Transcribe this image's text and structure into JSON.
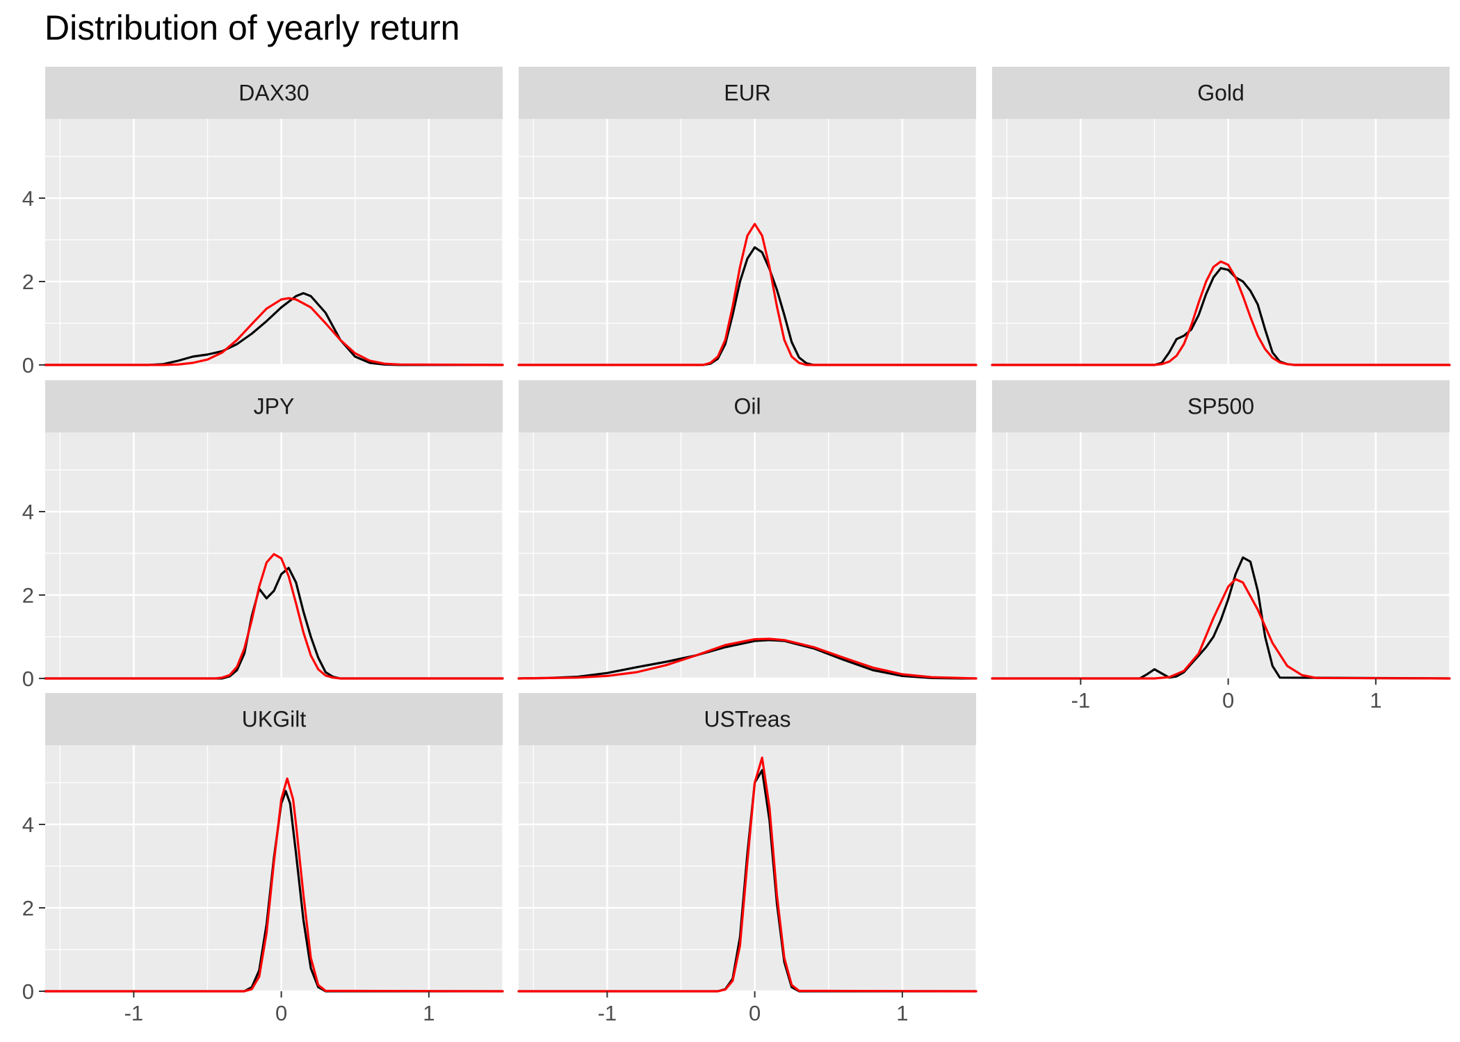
{
  "chart_data": {
    "type": "line",
    "title": "Distribution of yearly return",
    "xlabel": "",
    "ylabel": "",
    "xlim": [
      -1.6,
      1.5
    ],
    "ylim": [
      0,
      5.9
    ],
    "x_ticks": [
      -1,
      0,
      1
    ],
    "x_tick_labels": [
      "-1",
      "0",
      "1"
    ],
    "y_ticks": [
      0,
      2,
      4
    ],
    "y_tick_labels": [
      "0",
      "2",
      "4"
    ],
    "grid": true,
    "legend": "none",
    "colors": {
      "empirical": "#000000",
      "normal": "#ff0000",
      "panel_bg": "#ebebeb",
      "strip_bg": "#d9d9d9",
      "grid": "#ffffff"
    },
    "panels": [
      {
        "name": "DAX30",
        "series": [
          {
            "color": "#000000",
            "x": [
              -1.6,
              -0.9,
              -0.8,
              -0.7,
              -0.6,
              -0.5,
              -0.4,
              -0.3,
              -0.2,
              -0.1,
              0.0,
              0.1,
              0.15,
              0.2,
              0.3,
              0.4,
              0.5,
              0.6,
              0.7,
              0.8,
              1.5
            ],
            "y": [
              0,
              0,
              0.02,
              0.1,
              0.2,
              0.25,
              0.33,
              0.5,
              0.75,
              1.05,
              1.38,
              1.65,
              1.72,
              1.65,
              1.25,
              0.6,
              0.2,
              0.05,
              0.01,
              0,
              0
            ]
          },
          {
            "color": "#ff0000",
            "x": [
              -1.6,
              -0.8,
              -0.7,
              -0.6,
              -0.5,
              -0.4,
              -0.3,
              -0.2,
              -0.1,
              0.0,
              0.05,
              0.1,
              0.2,
              0.3,
              0.4,
              0.5,
              0.6,
              0.7,
              0.8,
              1.5
            ],
            "y": [
              0,
              0,
              0.01,
              0.05,
              0.13,
              0.3,
              0.6,
              0.98,
              1.35,
              1.57,
              1.6,
              1.57,
              1.38,
              1.0,
              0.6,
              0.28,
              0.1,
              0.03,
              0.01,
              0
            ]
          }
        ]
      },
      {
        "name": "EUR",
        "series": [
          {
            "color": "#000000",
            "x": [
              -1.6,
              -0.35,
              -0.3,
              -0.25,
              -0.2,
              -0.15,
              -0.1,
              -0.05,
              0.0,
              0.05,
              0.1,
              0.15,
              0.2,
              0.25,
              0.3,
              0.35,
              0.4,
              1.5
            ],
            "y": [
              0,
              0,
              0.03,
              0.15,
              0.5,
              1.2,
              2.0,
              2.55,
              2.82,
              2.7,
              2.3,
              1.8,
              1.2,
              0.55,
              0.18,
              0.04,
              0,
              0
            ]
          },
          {
            "color": "#ff0000",
            "x": [
              -1.6,
              -0.35,
              -0.3,
              -0.25,
              -0.2,
              -0.15,
              -0.1,
              -0.05,
              0.0,
              0.05,
              0.1,
              0.15,
              0.2,
              0.25,
              0.3,
              0.35,
              1.5
            ],
            "y": [
              0,
              0,
              0.05,
              0.2,
              0.6,
              1.4,
              2.35,
              3.1,
              3.38,
              3.1,
              2.35,
              1.4,
              0.6,
              0.2,
              0.05,
              0,
              0
            ]
          }
        ]
      },
      {
        "name": "Gold",
        "series": [
          {
            "color": "#000000",
            "x": [
              -1.6,
              -0.5,
              -0.45,
              -0.4,
              -0.35,
              -0.3,
              -0.25,
              -0.2,
              -0.15,
              -0.1,
              -0.05,
              0.0,
              0.05,
              0.1,
              0.15,
              0.2,
              0.25,
              0.3,
              0.35,
              0.4,
              0.45,
              1.5
            ],
            "y": [
              0,
              0,
              0.05,
              0.3,
              0.62,
              0.7,
              0.85,
              1.2,
              1.7,
              2.1,
              2.32,
              2.28,
              2.1,
              2.0,
              1.78,
              1.45,
              0.85,
              0.3,
              0.08,
              0.02,
              0,
              0
            ]
          },
          {
            "color": "#ff0000",
            "x": [
              -1.6,
              -0.5,
              -0.45,
              -0.4,
              -0.35,
              -0.3,
              -0.25,
              -0.2,
              -0.15,
              -0.1,
              -0.05,
              0.0,
              0.05,
              0.1,
              0.15,
              0.2,
              0.25,
              0.3,
              0.35,
              0.4,
              0.45,
              1.5
            ],
            "y": [
              0,
              0,
              0.02,
              0.08,
              0.22,
              0.5,
              0.95,
              1.5,
              2.0,
              2.35,
              2.48,
              2.4,
              2.1,
              1.65,
              1.15,
              0.7,
              0.38,
              0.17,
              0.06,
              0.02,
              0,
              0
            ]
          }
        ]
      },
      {
        "name": "JPY",
        "series": [
          {
            "color": "#000000",
            "x": [
              -1.6,
              -0.4,
              -0.35,
              -0.3,
              -0.25,
              -0.2,
              -0.15,
              -0.1,
              -0.05,
              0.0,
              0.05,
              0.1,
              0.15,
              0.2,
              0.25,
              0.3,
              0.35,
              0.4,
              1.5
            ],
            "y": [
              0,
              0,
              0.05,
              0.2,
              0.6,
              1.5,
              2.15,
              1.92,
              2.1,
              2.5,
              2.65,
              2.3,
              1.6,
              1.0,
              0.5,
              0.15,
              0.04,
              0,
              0
            ]
          },
          {
            "color": "#ff0000",
            "x": [
              -1.6,
              -0.45,
              -0.4,
              -0.35,
              -0.3,
              -0.25,
              -0.2,
              -0.15,
              -0.1,
              -0.05,
              0.0,
              0.05,
              0.1,
              0.15,
              0.2,
              0.25,
              0.3,
              0.35,
              0.4,
              1.5
            ],
            "y": [
              0,
              0,
              0.02,
              0.08,
              0.28,
              0.72,
              1.4,
              2.2,
              2.78,
              2.98,
              2.88,
              2.45,
              1.8,
              1.1,
              0.55,
              0.22,
              0.07,
              0.02,
              0,
              0
            ]
          }
        ]
      },
      {
        "name": "Oil",
        "series": [
          {
            "color": "#000000",
            "x": [
              -1.6,
              -1.4,
              -1.2,
              -1.0,
              -0.8,
              -0.6,
              -0.4,
              -0.2,
              0.0,
              0.1,
              0.2,
              0.4,
              0.6,
              0.8,
              1.0,
              1.2,
              1.4,
              1.5
            ],
            "y": [
              0,
              0.01,
              0.04,
              0.13,
              0.27,
              0.4,
              0.55,
              0.75,
              0.9,
              0.92,
              0.9,
              0.72,
              0.45,
              0.2,
              0.06,
              0.01,
              0,
              0
            ]
          },
          {
            "color": "#ff0000",
            "x": [
              -1.6,
              -1.4,
              -1.2,
              -1.0,
              -0.8,
              -0.6,
              -0.4,
              -0.2,
              0.0,
              0.1,
              0.2,
              0.4,
              0.6,
              0.8,
              1.0,
              1.2,
              1.4,
              1.5
            ],
            "y": [
              0,
              0.01,
              0.02,
              0.06,
              0.15,
              0.32,
              0.55,
              0.8,
              0.94,
              0.95,
              0.92,
              0.75,
              0.5,
              0.26,
              0.1,
              0.03,
              0.01,
              0
            ]
          }
        ]
      },
      {
        "name": "SP500",
        "series": [
          {
            "color": "#000000",
            "x": [
              -1.6,
              -0.6,
              -0.55,
              -0.5,
              -0.45,
              -0.4,
              -0.35,
              -0.3,
              -0.25,
              -0.2,
              -0.15,
              -0.1,
              -0.05,
              0.0,
              0.05,
              0.1,
              0.15,
              0.2,
              0.25,
              0.3,
              0.35,
              1.5
            ],
            "y": [
              0,
              0,
              0.1,
              0.22,
              0.12,
              0.02,
              0.05,
              0.15,
              0.35,
              0.55,
              0.75,
              1.0,
              1.4,
              1.9,
              2.5,
              2.9,
              2.8,
              2.1,
              1.0,
              0.3,
              0.02,
              0
            ]
          },
          {
            "color": "#ff0000",
            "x": [
              -1.6,
              -0.5,
              -0.4,
              -0.3,
              -0.2,
              -0.1,
              0.0,
              0.05,
              0.1,
              0.2,
              0.3,
              0.4,
              0.5,
              0.6,
              1.5
            ],
            "y": [
              0,
              0,
              0.03,
              0.18,
              0.6,
              1.45,
              2.2,
              2.38,
              2.3,
              1.65,
              0.85,
              0.3,
              0.08,
              0.01,
              0
            ]
          }
        ]
      },
      {
        "name": "UKGilt",
        "series": [
          {
            "color": "#000000",
            "x": [
              -1.6,
              -0.25,
              -0.2,
              -0.15,
              -0.1,
              -0.05,
              0.0,
              0.03,
              0.06,
              0.1,
              0.15,
              0.2,
              0.25,
              0.3,
              1.5
            ],
            "y": [
              0,
              0,
              0.1,
              0.5,
              1.6,
              3.2,
              4.5,
              4.8,
              4.5,
              3.3,
              1.7,
              0.55,
              0.1,
              0,
              0
            ]
          },
          {
            "color": "#ff0000",
            "x": [
              -1.6,
              -0.25,
              -0.2,
              -0.15,
              -0.1,
              -0.05,
              0.0,
              0.04,
              0.08,
              0.1,
              0.15,
              0.2,
              0.25,
              0.3,
              1.5
            ],
            "y": [
              0,
              0,
              0.05,
              0.35,
              1.4,
              3.1,
              4.6,
              5.1,
              4.6,
              4.0,
              2.3,
              0.8,
              0.15,
              0.01,
              0
            ]
          }
        ]
      },
      {
        "name": "USTreas",
        "series": [
          {
            "color": "#000000",
            "x": [
              -1.6,
              -0.25,
              -0.2,
              -0.15,
              -0.1,
              -0.05,
              0.0,
              0.05,
              0.1,
              0.15,
              0.2,
              0.25,
              0.3,
              1.5
            ],
            "y": [
              0,
              0,
              0.05,
              0.3,
              1.3,
              3.3,
              5.0,
              5.3,
              4.1,
              2.1,
              0.7,
              0.1,
              0,
              0
            ]
          },
          {
            "color": "#ff0000",
            "x": [
              -1.6,
              -0.25,
              -0.2,
              -0.15,
              -0.1,
              -0.05,
              0.0,
              0.05,
              0.1,
              0.15,
              0.2,
              0.25,
              0.3,
              1.5
            ],
            "y": [
              0,
              0,
              0.04,
              0.25,
              1.1,
              3.1,
              5.0,
              5.6,
              4.4,
              2.3,
              0.8,
              0.15,
              0.01,
              0
            ]
          }
        ]
      }
    ]
  }
}
